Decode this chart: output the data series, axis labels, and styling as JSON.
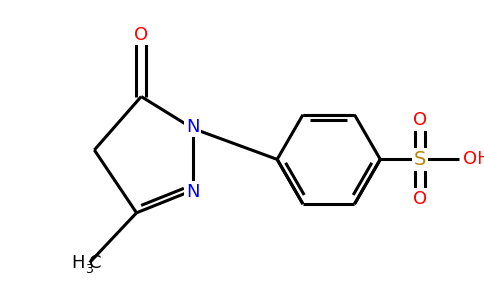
{
  "background_color": "#ffffff",
  "bond_color": "#000000",
  "bond_width": 2.2,
  "atom_colors": {
    "O": "#ff0000",
    "N": "#0000ff",
    "S": "#b8860b",
    "C": "#000000",
    "H": "#000000"
  },
  "fig_width": 4.84,
  "fig_height": 3.0,
  "dpi": 100
}
